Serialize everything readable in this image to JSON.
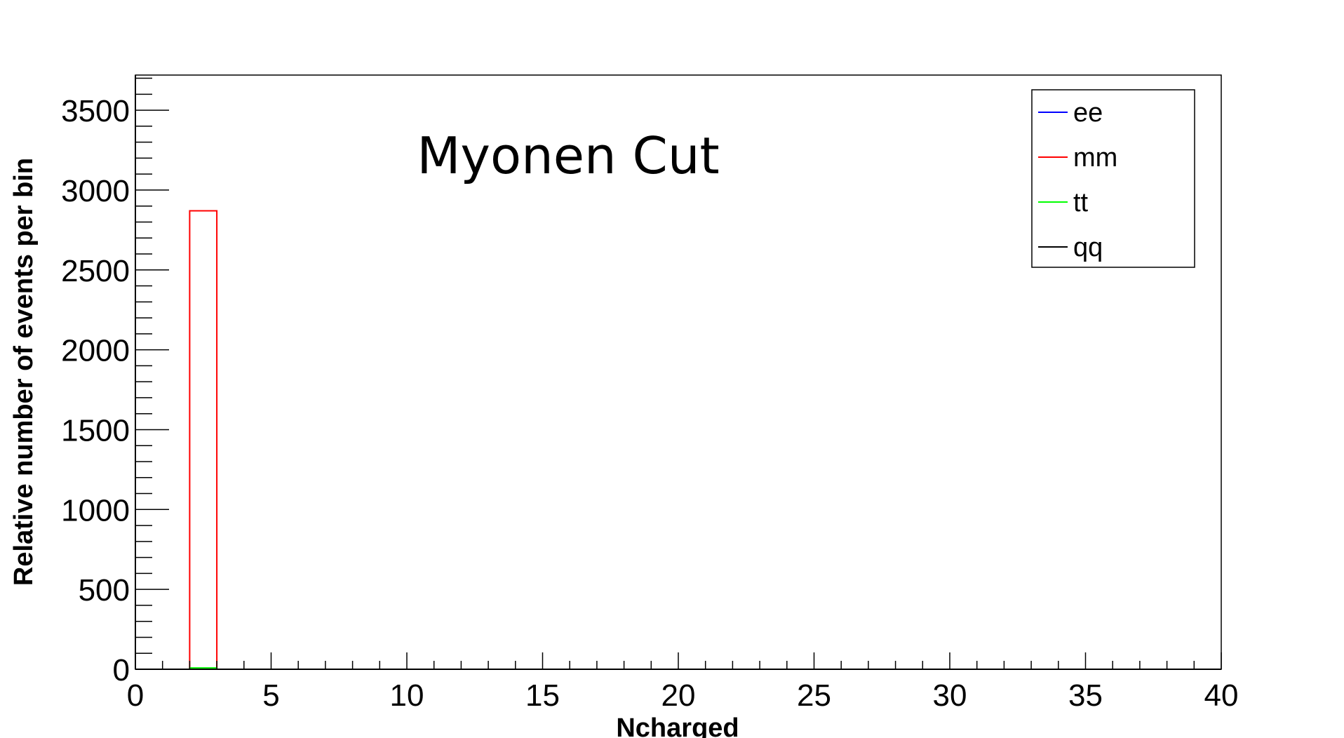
{
  "chart_data": {
    "type": "bar",
    "title": "Myonen Cut",
    "xlabel": "Ncharged",
    "ylabel": "Relative number of events per bin",
    "xlim": [
      0,
      40
    ],
    "ylim": [
      0,
      3720
    ],
    "x_ticks": [
      0,
      5,
      10,
      15,
      20,
      25,
      30,
      35,
      40
    ],
    "y_ticks": [
      0,
      500,
      1000,
      1500,
      2000,
      2500,
      3000,
      3500
    ],
    "x_tick_labels": [
      "0",
      "5",
      "10",
      "15",
      "20",
      "25",
      "30",
      "35",
      "40"
    ],
    "y_tick_labels": [
      "0",
      "500",
      "1000",
      "1500",
      "2000",
      "2500",
      "3000",
      "3500"
    ],
    "grid": false,
    "legend_position": "top-right",
    "series": [
      {
        "name": "ee",
        "color": "#0000ff",
        "bins": []
      },
      {
        "name": "mm",
        "color": "#ff0000",
        "bins": [
          {
            "x0": 2,
            "x1": 3,
            "value": 2870
          }
        ]
      },
      {
        "name": "tt",
        "color": "#00ff00",
        "bins": [
          {
            "x0": 2,
            "x1": 3,
            "value": 8
          }
        ]
      },
      {
        "name": "qq",
        "color": "#000000",
        "bins": []
      }
    ]
  }
}
